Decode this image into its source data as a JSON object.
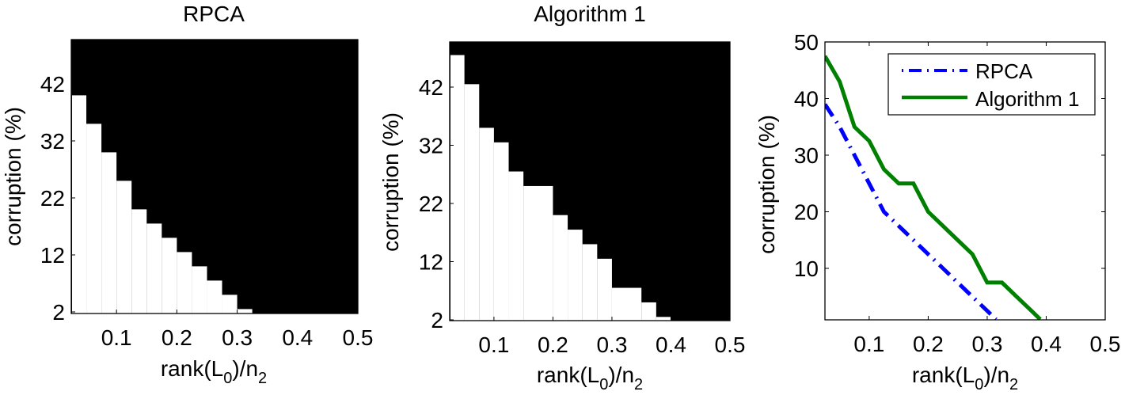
{
  "figure": {
    "panels": [
      {
        "id": "rpca-phase",
        "title": "RPCA",
        "xlabel_main": "rank(L",
        "xlabel_sub1": "0",
        "xlabel_mid": ")/n",
        "xlabel_sub2": "2",
        "ylabel": "corruption (%)"
      },
      {
        "id": "alg1-phase",
        "title": "Algorithm 1",
        "xlabel_main": "rank(L",
        "xlabel_sub1": "0",
        "xlabel_mid": ")/n",
        "xlabel_sub2": "2",
        "ylabel": "corruption (%)"
      },
      {
        "id": "comparison",
        "title": "",
        "xlabel_main": "rank(L",
        "xlabel_sub1": "0",
        "xlabel_mid": ")/n",
        "xlabel_sub2": "2",
        "ylabel": "corruption (%)"
      }
    ],
    "legend": [
      {
        "label": "RPCA",
        "color": "#0000ff",
        "style": "dash-dot"
      },
      {
        "label": "Algorithm 1",
        "color": "#008000",
        "style": "solid"
      }
    ]
  },
  "chart_data": [
    {
      "type": "heatmap",
      "title": "RPCA",
      "xlabel": "rank(L_0)/n_2",
      "ylabel": "corruption (%)",
      "xlim": [
        0.025,
        0.5
      ],
      "ylim": [
        2,
        49.5
      ],
      "xticks": [
        0.1,
        0.2,
        0.3,
        0.4,
        0.5
      ],
      "yticks": [
        2,
        12,
        22,
        32,
        42
      ],
      "colors": {
        "success": "#ffffff",
        "failure": "#000000"
      },
      "grid_step": {
        "x": 0.025,
        "y": 2.5
      },
      "success_boundary": {
        "x_start": [
          0.025,
          0.05,
          0.075,
          0.1,
          0.125,
          0.15,
          0.175,
          0.2,
          0.225,
          0.25,
          0.275,
          0.3
        ],
        "x_end": [
          0.05,
          0.075,
          0.1,
          0.125,
          0.15,
          0.175,
          0.2,
          0.225,
          0.25,
          0.275,
          0.3,
          0.325
        ],
        "max_corruption": [
          40,
          35,
          30,
          25,
          20,
          17.5,
          15,
          12.5,
          10,
          7.5,
          5,
          2.5
        ]
      }
    },
    {
      "type": "heatmap",
      "title": "Algorithm 1",
      "xlabel": "rank(L_0)/n_2",
      "ylabel": "corruption (%)",
      "xlim": [
        0.025,
        0.5
      ],
      "ylim": [
        2,
        49.5
      ],
      "xticks": [
        0.1,
        0.2,
        0.3,
        0.4,
        0.5
      ],
      "yticks": [
        2,
        12,
        22,
        32,
        42
      ],
      "colors": {
        "success": "#ffffff",
        "failure": "#000000"
      },
      "grid_step": {
        "x": 0.025,
        "y": 2.5
      },
      "success_boundary": {
        "x_start": [
          0.025,
          0.05,
          0.075,
          0.1,
          0.125,
          0.15,
          0.2,
          0.225,
          0.25,
          0.275,
          0.3,
          0.35,
          0.375
        ],
        "x_end": [
          0.05,
          0.075,
          0.1,
          0.125,
          0.15,
          0.2,
          0.225,
          0.25,
          0.275,
          0.3,
          0.35,
          0.375,
          0.4
        ],
        "max_corruption": [
          47.5,
          42.5,
          35,
          32.5,
          27.5,
          25,
          20,
          17.5,
          15,
          12.5,
          7.5,
          5,
          2.5
        ]
      }
    },
    {
      "type": "line",
      "title": "",
      "xlabel": "rank(L_0)/n_2",
      "ylabel": "corruption (%)",
      "xlim": [
        0.025,
        0.5
      ],
      "ylim": [
        1,
        50
      ],
      "xticks": [
        0.1,
        0.2,
        0.3,
        0.4,
        0.5
      ],
      "yticks": [
        10,
        20,
        30,
        40,
        50
      ],
      "grid": false,
      "legend_position": "upper right",
      "series": [
        {
          "name": "RPCA",
          "color": "#0000ff",
          "linestyle": "dash-dot",
          "x": [
            0.025,
            0.05,
            0.075,
            0.1,
            0.125,
            0.15,
            0.175,
            0.2,
            0.225,
            0.25,
            0.275,
            0.3,
            0.315
          ],
          "y": [
            39,
            35,
            30,
            25,
            20,
            17.5,
            15,
            12.5,
            10,
            7.5,
            5,
            2.5,
            1
          ]
        },
        {
          "name": "Algorithm 1",
          "color": "#008000",
          "linestyle": "solid",
          "x": [
            0.025,
            0.05,
            0.075,
            0.1,
            0.125,
            0.15,
            0.175,
            0.2,
            0.225,
            0.25,
            0.275,
            0.3,
            0.325,
            0.35,
            0.375,
            0.39
          ],
          "y": [
            47.5,
            43,
            35,
            32.5,
            27.5,
            25,
            25,
            20,
            17.5,
            15,
            12.5,
            7.5,
            7.5,
            5,
            2.5,
            1
          ]
        }
      ]
    }
  ]
}
